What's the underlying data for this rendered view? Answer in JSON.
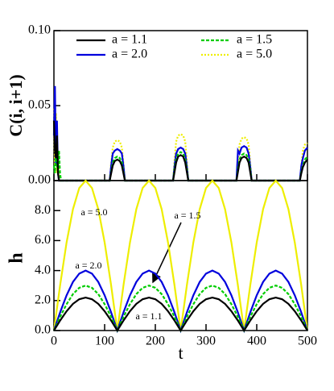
{
  "chart_data": [
    {
      "type": "line",
      "ylabel": "C(i, i+1)",
      "x": [
        0,
        2,
        4,
        6,
        8,
        10,
        12,
        14,
        16,
        110,
        113,
        116,
        120,
        125,
        130,
        134,
        137,
        140,
        235,
        238,
        241,
        245,
        250,
        255,
        259,
        262,
        265,
        360,
        363,
        366,
        370,
        375,
        380,
        384,
        387,
        390,
        485,
        488,
        491,
        495,
        500
      ],
      "xlim": [
        0,
        500
      ],
      "xticks": [
        0,
        100,
        200,
        300,
        400,
        500
      ],
      "ylim": [
        0,
        0.1
      ],
      "yticks": [
        {
          "value": 0,
          "label": "0.00"
        },
        {
          "value": 0.05,
          "label": "0.05"
        },
        {
          "value": 0.1,
          "label": "0.10"
        }
      ],
      "legend": "top",
      "series": [
        {
          "name": "a = 1.1",
          "color": "#000000",
          "style": "solid",
          "values": [
            0.04,
            0.02,
            0.015,
            0.03,
            0.005,
            0,
            0,
            0,
            0,
            0,
            0.005,
            0.01,
            0.013,
            0.014,
            0.013,
            0.01,
            0.005,
            0,
            0,
            0.006,
            0.012,
            0.016,
            0.017,
            0.016,
            0.012,
            0.006,
            0,
            0,
            0.006,
            0.012,
            0.015,
            0.016,
            0.015,
            0.012,
            0.006,
            0,
            0,
            0.005,
            0.009,
            0.012,
            0.014
          ]
        },
        {
          "name": "a = 1.5",
          "color": "#00cc00",
          "style": "dashed",
          "values": [
            0.01,
            0.005,
            0.02,
            0.01,
            0.006,
            0.02,
            0.005,
            0,
            0,
            0,
            0.006,
            0.012,
            0.015,
            0.016,
            0.015,
            0.012,
            0.006,
            0,
            0,
            0.008,
            0.014,
            0.018,
            0.019,
            0.018,
            0.014,
            0.008,
            0,
            0,
            0.008,
            0.014,
            0.017,
            0.018,
            0.017,
            0.014,
            0.008,
            0,
            0,
            0.006,
            0.01,
            0.014,
            0.016
          ]
        },
        {
          "name": "a = 2.0",
          "color": "#0000dd",
          "style": "solid",
          "values": [
            0.03,
            0.063,
            0.01,
            0.04,
            0.005,
            0,
            0,
            0,
            0,
            0,
            0.01,
            0.018,
            0.02,
            0.021,
            0.02,
            0.018,
            0.01,
            0,
            0,
            0.01,
            0.018,
            0.021,
            0.022,
            0.021,
            0.018,
            0.01,
            0,
            0,
            0.02,
            0.018,
            0.022,
            0.023,
            0.022,
            0.018,
            0.01,
            0,
            0,
            0.01,
            0.015,
            0.02,
            0.022
          ]
        },
        {
          "name": "a = 5.0",
          "color": "#eeee00",
          "style": "dotted",
          "values": [
            0.048,
            0.01,
            0.045,
            0.005,
            0.02,
            0,
            0,
            0,
            0,
            0,
            0.012,
            0.022,
            0.026,
            0.027,
            0.026,
            0.022,
            0.012,
            0,
            0,
            0.014,
            0.026,
            0.03,
            0.031,
            0.03,
            0.026,
            0.014,
            0,
            0,
            0.012,
            0.024,
            0.028,
            0.029,
            0.028,
            0.024,
            0.012,
            0,
            0,
            0.01,
            0.02,
            0.024,
            0.025
          ]
        }
      ]
    },
    {
      "type": "line",
      "xlabel": "t",
      "ylabel": "h",
      "x": [
        0,
        12.5,
        25,
        37.5,
        50,
        62.5,
        75,
        87.5,
        100,
        112.5,
        125,
        137.5,
        150,
        162.5,
        175,
        187.5,
        200,
        212.5,
        225,
        237.5,
        250,
        262.5,
        275,
        287.5,
        300,
        312.5,
        325,
        337.5,
        350,
        362.5,
        375,
        387.5,
        400,
        412.5,
        425,
        437.5,
        450,
        462.5,
        475,
        487.5,
        500
      ],
      "xlim": [
        0,
        500
      ],
      "xticks": [
        0,
        100,
        200,
        300,
        400,
        500
      ],
      "ylim": [
        0,
        10
      ],
      "yticks": [
        {
          "value": 0,
          "label": "0.0"
        },
        {
          "value": 2,
          "label": "2.0"
        },
        {
          "value": 4,
          "label": "4.0"
        },
        {
          "value": 6,
          "label": "6.0"
        },
        {
          "value": 8,
          "label": "8.0"
        }
      ],
      "annotations": [
        "a = 5.0",
        "a = 2.0",
        "a = 1.5",
        "a = 1.1"
      ],
      "series": [
        {
          "color": "#000000",
          "style": "solid",
          "values": [
            0,
            0.68,
            1.29,
            1.78,
            2.09,
            2.2,
            2.09,
            1.78,
            1.29,
            0.68,
            0,
            0.68,
            1.29,
            1.78,
            2.09,
            2.2,
            2.09,
            1.78,
            1.29,
            0.68,
            0,
            0.68,
            1.29,
            1.78,
            2.09,
            2.2,
            2.09,
            1.78,
            1.29,
            0.68,
            0,
            0.68,
            1.29,
            1.78,
            2.09,
            2.2,
            2.09,
            1.78,
            1.29,
            0.68,
            0
          ]
        },
        {
          "color": "#00cc00",
          "style": "dashed",
          "values": [
            0,
            0.93,
            1.76,
            2.43,
            2.85,
            3,
            2.85,
            2.43,
            1.76,
            0.93,
            0,
            0.93,
            1.76,
            2.43,
            2.85,
            3,
            2.85,
            2.43,
            1.76,
            0.93,
            0,
            0.93,
            1.76,
            2.43,
            2.85,
            3,
            2.85,
            2.43,
            1.76,
            0.93,
            0,
            0.93,
            1.76,
            2.43,
            2.85,
            3,
            2.85,
            2.43,
            1.76,
            0.93,
            0
          ]
        },
        {
          "color": "#0000dd",
          "style": "solid",
          "values": [
            0,
            1.24,
            2.35,
            3.24,
            3.8,
            4,
            3.8,
            3.24,
            2.35,
            1.24,
            0,
            1.24,
            2.35,
            3.24,
            3.8,
            4,
            3.8,
            3.24,
            2.35,
            1.24,
            0,
            1.24,
            2.35,
            3.24,
            3.8,
            4,
            3.8,
            3.24,
            2.35,
            1.24,
            0,
            1.24,
            2.35,
            3.24,
            3.8,
            4,
            3.8,
            3.24,
            2.35,
            1.24,
            0
          ]
        },
        {
          "color": "#eeee00",
          "style": "solid",
          "values": [
            0,
            3.09,
            5.88,
            8.09,
            9.51,
            10,
            9.51,
            8.09,
            5.88,
            3.09,
            0,
            3.09,
            5.88,
            8.09,
            9.51,
            10,
            9.51,
            8.09,
            5.88,
            3.09,
            0,
            3.09,
            5.88,
            8.09,
            9.51,
            10,
            9.51,
            8.09,
            5.88,
            3.09,
            0,
            3.09,
            5.88,
            8.09,
            9.51,
            10,
            9.51,
            8.09,
            5.88,
            3.09,
            0
          ]
        }
      ]
    }
  ]
}
